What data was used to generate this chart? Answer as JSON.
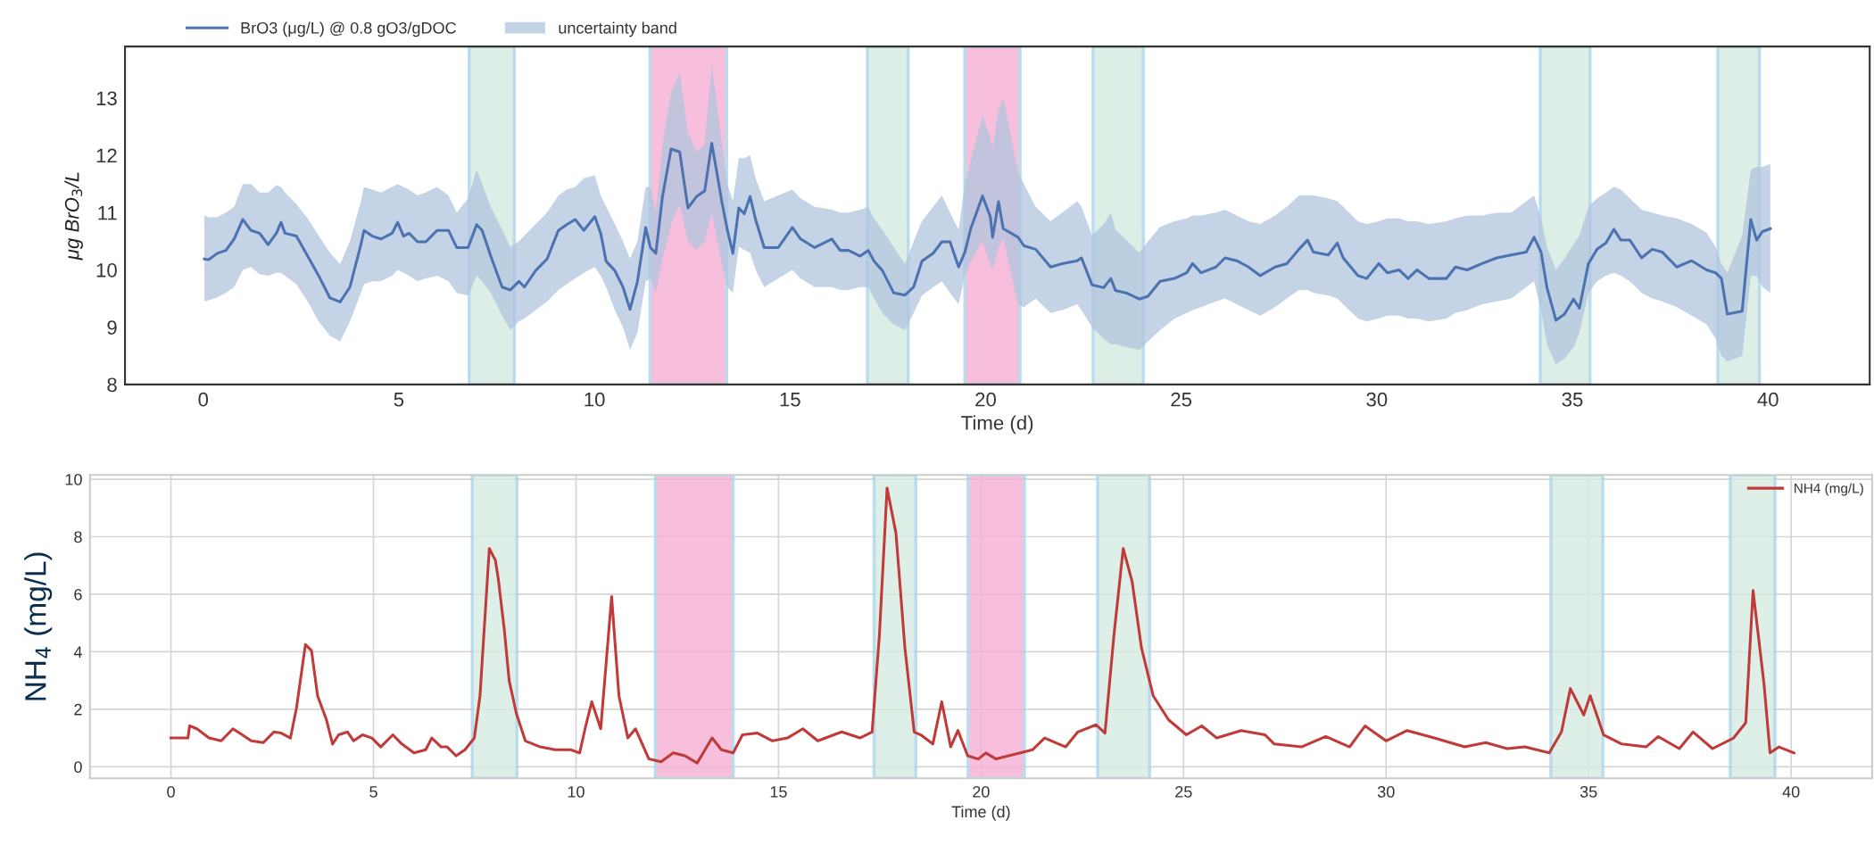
{
  "chart_data": [
    {
      "type": "line",
      "xlabel": "Time (d)",
      "ylabel": "μg BrO$_{3}$/L",
      "xlim": [
        -2,
        42.6
      ],
      "ylim": [
        8,
        13.9
      ],
      "xticks": [
        0,
        5,
        10,
        15,
        20,
        25,
        30,
        35,
        40
      ],
      "yticks": [
        8,
        9,
        10,
        11,
        12,
        13
      ],
      "grid": false,
      "legend": "top left",
      "series": [
        {
          "name": "BrO3 (μg/L) @ 0.8 gO3/gDOC",
          "color": "#4c72b0",
          "x": [
            0.03,
            0.14,
            0.36,
            0.58,
            0.79,
            1.01,
            1.22,
            1.44,
            1.66,
            1.87,
            1.99,
            2.09,
            2.38,
            2.67,
            2.95,
            3.24,
            3.5,
            3.75,
            4.03,
            4.11,
            4.32,
            4.54,
            4.83,
            4.97,
            5.12,
            5.26,
            5.48,
            5.69,
            5.98,
            6.27,
            6.48,
            6.77,
            6.99,
            7.13,
            7.35,
            7.64,
            7.85,
            8.07,
            8.21,
            8.5,
            8.79,
            9.08,
            9.29,
            9.51,
            9.73,
            10.01,
            10.16,
            10.3,
            10.52,
            10.73,
            10.91,
            11.1,
            11.31,
            11.43,
            11.57,
            11.74,
            11.96,
            12.18,
            12.39,
            12.61,
            12.82,
            13.0,
            13.26,
            13.4,
            13.54,
            13.69,
            13.83,
            13.98,
            14.12,
            14.34,
            14.7,
            15.06,
            15.27,
            15.63,
            16.07,
            16.28,
            16.5,
            16.79,
            17.0,
            17.15,
            17.36,
            17.65,
            17.94,
            18.16,
            18.37,
            18.66,
            18.88,
            19.09,
            19.31,
            19.47,
            19.62,
            19.92,
            20.12,
            20.18,
            20.33,
            20.45,
            20.83,
            20.98,
            21.28,
            21.66,
            21.96,
            22.34,
            22.45,
            22.72,
            23.02,
            23.2,
            23.32,
            23.63,
            23.93,
            24.15,
            24.46,
            24.83,
            25.14,
            25.29,
            25.51,
            25.89,
            26.12,
            26.42,
            26.72,
            27.02,
            27.4,
            27.7,
            28.01,
            28.23,
            28.38,
            28.76,
            28.99,
            29.14,
            29.52,
            29.74,
            30.05,
            30.27,
            30.57,
            30.8,
            31.03,
            31.33,
            31.78,
            32.01,
            32.31,
            32.69,
            33.07,
            33.44,
            33.82,
            34.02,
            34.2,
            34.35,
            34.58,
            34.8,
            35.03,
            35.18,
            35.41,
            35.63,
            35.86,
            36.06,
            36.24,
            36.47,
            36.77,
            37.04,
            37.3,
            37.67,
            38.05,
            38.43,
            38.66,
            38.81,
            38.96,
            39.34,
            39.56,
            39.71,
            39.86,
            40.06
          ],
          "values": [
            10.19,
            10.18,
            10.29,
            10.34,
            10.54,
            10.88,
            10.69,
            10.64,
            10.44,
            10.64,
            10.83,
            10.64,
            10.59,
            10.24,
            9.9,
            9.51,
            9.44,
            9.7,
            10.44,
            10.69,
            10.59,
            10.54,
            10.64,
            10.83,
            10.59,
            10.64,
            10.49,
            10.49,
            10.69,
            10.69,
            10.39,
            10.39,
            10.79,
            10.69,
            10.24,
            9.7,
            9.65,
            9.8,
            9.7,
            9.99,
            10.19,
            10.69,
            10.79,
            10.88,
            10.69,
            10.93,
            10.64,
            10.15,
            9.99,
            9.7,
            9.31,
            9.8,
            10.74,
            10.39,
            10.29,
            11.28,
            12.11,
            12.06,
            11.08,
            11.28,
            11.38,
            12.21,
            11.18,
            10.69,
            10.29,
            11.08,
            10.98,
            11.28,
            10.88,
            10.39,
            10.39,
            10.74,
            10.54,
            10.39,
            10.54,
            10.34,
            10.34,
            10.24,
            10.34,
            10.15,
            9.99,
            9.6,
            9.56,
            9.7,
            10.15,
            10.29,
            10.49,
            10.49,
            10.05,
            10.31,
            10.72,
            11.29,
            10.93,
            10.57,
            11.19,
            10.72,
            10.57,
            10.42,
            10.36,
            10.05,
            10.11,
            10.16,
            10.21,
            9.74,
            9.69,
            9.85,
            9.64,
            9.59,
            9.49,
            9.54,
            9.8,
            9.85,
            9.95,
            10.11,
            9.95,
            10.05,
            10.21,
            10.16,
            10.05,
            9.9,
            10.05,
            10.11,
            10.36,
            10.52,
            10.31,
            10.26,
            10.47,
            10.21,
            9.9,
            9.85,
            10.11,
            9.95,
            10.0,
            9.85,
            10.0,
            9.85,
            9.85,
            10.05,
            10.0,
            10.11,
            10.21,
            10.26,
            10.31,
            10.57,
            10.31,
            9.69,
            9.12,
            9.23,
            9.49,
            9.33,
            10.11,
            10.36,
            10.47,
            10.71,
            10.52,
            10.52,
            10.21,
            10.36,
            10.31,
            10.05,
            10.16,
            10.0,
            9.95,
            9.85,
            9.23,
            9.28,
            10.88,
            10.52,
            10.67,
            10.72
          ],
          "lower": [
            9.45,
            9.47,
            9.52,
            9.6,
            9.7,
            10.0,
            10.05,
            9.92,
            9.9,
            9.95,
            9.95,
            9.9,
            9.75,
            9.45,
            9.1,
            8.85,
            8.75,
            9.1,
            9.6,
            9.75,
            9.8,
            9.8,
            9.9,
            10.0,
            9.95,
            9.9,
            9.8,
            9.85,
            9.9,
            9.8,
            9.6,
            9.55,
            9.9,
            9.8,
            9.6,
            9.2,
            8.95,
            9.1,
            9.15,
            9.3,
            9.45,
            9.65,
            9.75,
            9.85,
            9.95,
            10.05,
            9.9,
            9.7,
            9.3,
            9.0,
            8.6,
            8.9,
            9.8,
            9.85,
            9.6,
            10.2,
            10.8,
            11.15,
            10.5,
            10.35,
            10.5,
            11.0,
            10.1,
            9.7,
            9.6,
            10.4,
            10.35,
            10.3,
            10.0,
            9.7,
            9.85,
            10.0,
            9.85,
            9.7,
            9.7,
            9.65,
            9.65,
            9.7,
            9.7,
            9.5,
            9.25,
            9.05,
            8.95,
            9.25,
            9.55,
            9.7,
            9.8,
            9.6,
            9.4,
            9.9,
            10.15,
            10.5,
            10.1,
            10.0,
            10.4,
            10.55,
            9.4,
            9.35,
            9.5,
            9.25,
            9.3,
            9.4,
            9.3,
            9.0,
            8.8,
            8.7,
            8.7,
            8.65,
            8.6,
            8.75,
            8.95,
            9.15,
            9.25,
            9.3,
            9.35,
            9.45,
            9.5,
            9.4,
            9.3,
            9.2,
            9.35,
            9.5,
            9.65,
            9.65,
            9.6,
            9.55,
            9.5,
            9.4,
            9.15,
            9.1,
            9.15,
            9.2,
            9.2,
            9.15,
            9.15,
            9.1,
            9.15,
            9.25,
            9.3,
            9.4,
            9.45,
            9.5,
            9.7,
            9.8,
            9.3,
            8.7,
            8.35,
            8.45,
            8.65,
            8.9,
            9.6,
            9.8,
            9.9,
            9.95,
            9.9,
            9.8,
            9.6,
            9.5,
            9.45,
            9.35,
            9.2,
            9.05,
            8.8,
            8.5,
            8.4,
            8.5,
            9.9,
            9.9,
            9.7,
            9.6
          ],
          "upper": [
            10.95,
            10.92,
            10.92,
            11.0,
            11.1,
            11.5,
            11.5,
            11.35,
            11.35,
            11.48,
            11.45,
            11.35,
            11.15,
            10.9,
            10.6,
            10.3,
            10.1,
            10.5,
            11.2,
            11.45,
            11.4,
            11.35,
            11.45,
            11.5,
            11.45,
            11.4,
            11.3,
            11.35,
            11.45,
            11.3,
            11.0,
            11.25,
            11.75,
            11.5,
            11.1,
            10.7,
            10.4,
            10.5,
            10.6,
            10.8,
            11.0,
            11.3,
            11.4,
            11.45,
            11.6,
            11.65,
            11.3,
            11.1,
            10.8,
            10.5,
            10.2,
            10.5,
            11.45,
            11.45,
            11.0,
            12.2,
            13.1,
            13.45,
            12.4,
            12.05,
            12.2,
            13.6,
            12.2,
            11.5,
            11.2,
            11.95,
            11.95,
            12.0,
            11.6,
            11.2,
            11.3,
            11.4,
            11.25,
            11.1,
            11.05,
            11.0,
            11.0,
            11.05,
            11.1,
            10.9,
            10.7,
            10.4,
            10.1,
            10.5,
            10.85,
            11.1,
            11.3,
            11.0,
            10.7,
            11.5,
            11.9,
            12.7,
            12.3,
            12.1,
            12.8,
            13.0,
            11.7,
            11.5,
            11.1,
            10.85,
            11.0,
            11.2,
            11.1,
            10.6,
            10.8,
            11.0,
            10.7,
            10.5,
            10.3,
            10.5,
            10.75,
            10.85,
            10.9,
            10.95,
            10.95,
            11.0,
            11.05,
            10.95,
            10.85,
            10.8,
            10.95,
            11.1,
            11.3,
            11.3,
            11.3,
            11.25,
            11.2,
            11.1,
            10.85,
            10.8,
            10.85,
            10.9,
            10.9,
            10.85,
            10.85,
            10.8,
            10.85,
            10.9,
            10.95,
            10.95,
            11.0,
            11.0,
            11.2,
            11.3,
            10.9,
            10.4,
            10.0,
            10.2,
            10.45,
            10.6,
            11.1,
            11.25,
            11.35,
            11.45,
            11.4,
            11.25,
            11.05,
            11.0,
            10.95,
            10.9,
            10.8,
            10.65,
            10.4,
            10.1,
            9.95,
            10.6,
            11.75,
            11.8,
            11.8,
            11.85
          ]
        },
        {
          "name": "uncertainty band",
          "type": "area",
          "color": "#b0c4de"
        }
      ],
      "bands": [
        {
          "axis": "x",
          "from": 6.8,
          "to": 7.95,
          "color": "#d5ebe1"
        },
        {
          "axis": "x",
          "from": 11.42,
          "to": 13.38,
          "color": "#f5afd2"
        },
        {
          "axis": "x",
          "from": 16.98,
          "to": 18.02,
          "color": "#d5ebe1"
        },
        {
          "axis": "x",
          "from": 19.47,
          "to": 20.88,
          "color": "#f5afd2"
        },
        {
          "axis": "x",
          "from": 22.75,
          "to": 24.03,
          "color": "#d5ebe1"
        },
        {
          "axis": "x",
          "from": 34.18,
          "to": 35.45,
          "color": "#d5ebe1"
        },
        {
          "axis": "x",
          "from": 38.72,
          "to": 39.78,
          "color": "#d5ebe1"
        }
      ]
    },
    {
      "type": "line",
      "xlabel": "Time (d)",
      "ylabel": "NH$_{4}$ (mg/L)",
      "xlim": [
        -2,
        42
      ],
      "ylim": [
        -0.4,
        10.15
      ],
      "xticks": [
        0,
        5,
        10,
        15,
        20,
        25,
        30,
        35,
        40
      ],
      "yticks": [
        0,
        2,
        4,
        6,
        8,
        10
      ],
      "grid": true,
      "legend": "top right",
      "series": [
        {
          "name": "NH4 (mg/L)",
          "color": "#c03a3a",
          "x": [
            0,
            0.42,
            0.46,
            0.64,
            0.94,
            1.24,
            1.53,
            1.76,
            1.98,
            2.28,
            2.54,
            2.72,
            2.95,
            3.1,
            3.32,
            3.47,
            3.62,
            3.84,
            3.99,
            4.14,
            4.36,
            4.51,
            4.73,
            4.96,
            5.18,
            5.48,
            5.7,
            6.0,
            6.29,
            6.44,
            6.67,
            6.82,
            7.04,
            7.26,
            7.49,
            7.63,
            7.86,
            8.01,
            8.08,
            8.23,
            8.35,
            8.53,
            8.75,
            9.12,
            9.49,
            9.87,
            10.09,
            10.24,
            10.39,
            10.61,
            10.88,
            11.06,
            11.28,
            11.47,
            11.8,
            12.1,
            12.4,
            12.69,
            12.99,
            13.36,
            13.59,
            13.88,
            14.11,
            14.48,
            14.85,
            15.22,
            15.6,
            15.97,
            16.56,
            17.01,
            17.31,
            17.49,
            17.68,
            17.9,
            18.12,
            18.35,
            18.51,
            18.81,
            19.03,
            19.25,
            19.43,
            19.67,
            19.93,
            20.12,
            20.37,
            20.97,
            21.27,
            21.57,
            22.09,
            22.39,
            22.84,
            23.06,
            23.28,
            23.51,
            23.73,
            23.96,
            24.25,
            24.63,
            25.07,
            25.45,
            25.82,
            26.42,
            27.01,
            27.24,
            27.91,
            28.51,
            29.1,
            29.48,
            30.0,
            30.52,
            31.19,
            31.94,
            32.46,
            32.99,
            33.43,
            34.03,
            34.33,
            34.55,
            34.88,
            35.04,
            35.37,
            35.82,
            36.42,
            36.72,
            37.24,
            37.58,
            38.06,
            38.58,
            38.88,
            39.06,
            39.33,
            39.48,
            39.7,
            40.07
          ],
          "values": [
            1.0,
            1.0,
            1.42,
            1.32,
            1.0,
            0.9,
            1.32,
            1.11,
            0.9,
            0.84,
            1.21,
            1.17,
            1.0,
            2.05,
            4.25,
            4.04,
            2.47,
            1.63,
            0.79,
            1.11,
            1.21,
            0.9,
            1.11,
            1.0,
            0.69,
            1.11,
            0.79,
            0.48,
            0.59,
            1.0,
            0.69,
            0.69,
            0.38,
            0.59,
            1.0,
            2.47,
            7.59,
            7.18,
            6.55,
            4.77,
            2.99,
            1.84,
            0.9,
            0.69,
            0.59,
            0.59,
            0.48,
            1.42,
            2.26,
            1.32,
            5.92,
            2.47,
            1.0,
            1.32,
            0.27,
            0.17,
            0.48,
            0.38,
            0.13,
            1.0,
            0.59,
            0.48,
            1.11,
            1.17,
            0.9,
            1.0,
            1.32,
            0.9,
            1.21,
            1.0,
            1.21,
            4.56,
            9.69,
            8.12,
            4.14,
            1.21,
            1.11,
            0.79,
            2.26,
            0.69,
            1.26,
            0.38,
            0.27,
            0.48,
            0.27,
            0.48,
            0.59,
            1.0,
            0.69,
            1.21,
            1.46,
            1.17,
            4.56,
            7.59,
            6.44,
            4.14,
            2.47,
            1.63,
            1.11,
            1.42,
            1.0,
            1.26,
            1.11,
            0.79,
            0.69,
            1.05,
            0.69,
            1.42,
            0.9,
            1.26,
            1.0,
            0.69,
            0.84,
            0.63,
            0.69,
            0.48,
            1.21,
            2.72,
            1.8,
            2.47,
            1.11,
            0.79,
            0.69,
            1.05,
            0.63,
            1.21,
            0.63,
            1.0,
            1.53,
            6.13,
            2.89,
            0.48,
            0.69,
            0.48
          ]
        }
      ],
      "bands": [
        {
          "axis": "x",
          "from": 7.44,
          "to": 8.54,
          "color": "#d5ebe1"
        },
        {
          "axis": "x",
          "from": 11.96,
          "to": 13.88,
          "color": "#f5afd2"
        },
        {
          "axis": "x",
          "from": 17.36,
          "to": 18.39,
          "color": "#d5ebe1"
        },
        {
          "axis": "x",
          "from": 19.68,
          "to": 21.07,
          "color": "#f5afd2"
        },
        {
          "axis": "x",
          "from": 22.88,
          "to": 24.16,
          "color": "#d5ebe1"
        },
        {
          "axis": "x",
          "from": 34.07,
          "to": 35.35,
          "color": "#d5ebe1"
        },
        {
          "axis": "x",
          "from": 38.5,
          "to": 39.6,
          "color": "#d5ebe1"
        }
      ]
    }
  ]
}
